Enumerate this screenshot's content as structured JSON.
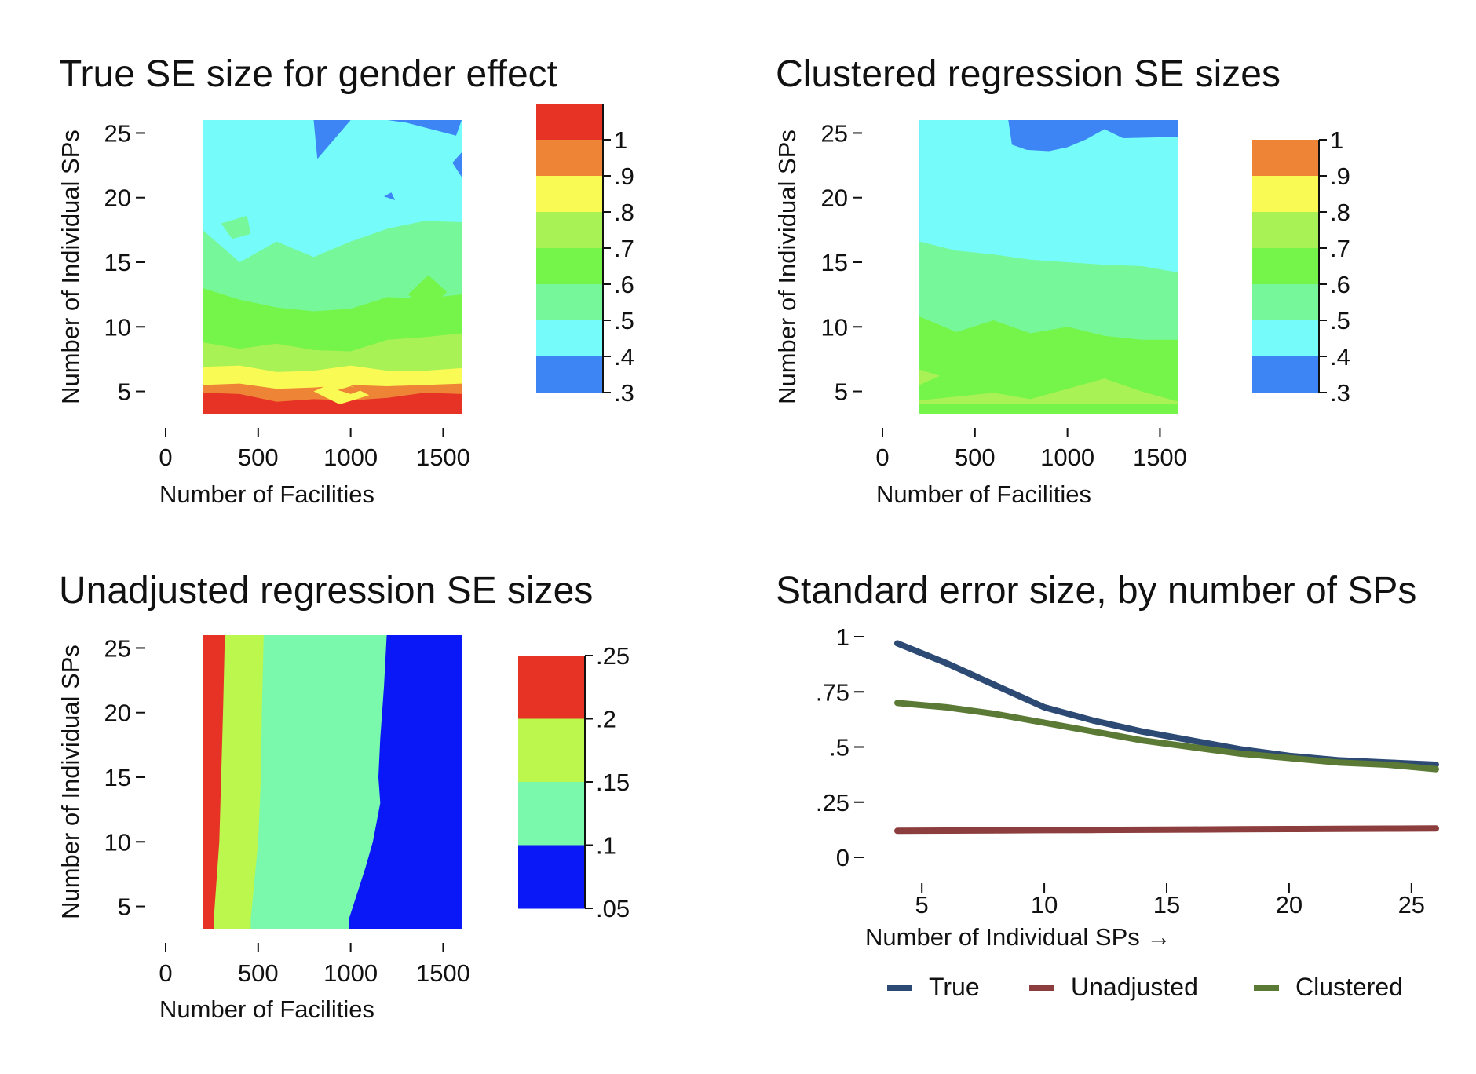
{
  "chart_data": [
    {
      "type": "heatmap",
      "title": "True SE size for gender effect",
      "xlabel": "Number of Facilities",
      "ylabel": "Number of Individual SPs",
      "x_ticks": [
        "0",
        "500",
        "1000",
        "1500"
      ],
      "y_ticks": [
        "5",
        "10",
        "15",
        "20",
        "25"
      ],
      "xlim": [
        0,
        1600
      ],
      "ylim": [
        4,
        26
      ],
      "data_extent": {
        "x": [
          200,
          1600
        ],
        "y": [
          4,
          26
        ]
      },
      "legend_ticks": [
        "1",
        ".9",
        ".8",
        ".7",
        ".6",
        ".5",
        ".4",
        ".3"
      ],
      "legend_colors": [
        "#e63325",
        "#ee8536",
        "#fafa55",
        "#a8f255",
        "#75f549",
        "#76f89a",
        "#76fbfb",
        "#3d84f5"
      ],
      "contour_bands": [
        {
          "level": "0.4-0.5",
          "color": "#76fbfb",
          "boundary": [
            [
              200,
              17.5
            ],
            [
              400,
              15
            ],
            [
              600,
              16.6
            ],
            [
              800,
              15.4
            ],
            [
              1000,
              16.6
            ],
            [
              1200,
              17.6
            ],
            [
              1400,
              18.2
            ],
            [
              1600,
              18.1
            ]
          ]
        },
        {
          "level": "0.5-0.6",
          "color": "#76f89a",
          "boundary": [
            [
              200,
              13
            ],
            [
              400,
              12.1
            ],
            [
              600,
              11.5
            ],
            [
              800,
              11.2
            ],
            [
              1000,
              11.4
            ],
            [
              1200,
              12.3
            ],
            [
              1400,
              12.2
            ],
            [
              1600,
              12.5
            ]
          ]
        },
        {
          "level": "0.6-0.7",
          "color": "#75f549",
          "boundary": [
            [
              200,
              8.8
            ],
            [
              400,
              8.3
            ],
            [
              600,
              8.7
            ],
            [
              800,
              8.2
            ],
            [
              1000,
              8.1
            ],
            [
              1200,
              9.0
            ],
            [
              1400,
              9.2
            ],
            [
              1600,
              9.5
            ]
          ]
        },
        {
          "level": "0.7-0.8",
          "color": "#a8f255",
          "boundary": [
            [
              200,
              6.9
            ],
            [
              400,
              7.0
            ],
            [
              600,
              6.5
            ],
            [
              800,
              6.6
            ],
            [
              1000,
              7.0
            ],
            [
              1200,
              6.6
            ],
            [
              1400,
              6.6
            ],
            [
              1600,
              6.8
            ]
          ]
        },
        {
          "level": "0.8-0.9",
          "color": "#fafa55",
          "boundary": [
            [
              200,
              5.5
            ],
            [
              400,
              5.6
            ],
            [
              600,
              5.2
            ],
            [
              800,
              5.3
            ],
            [
              1000,
              5.5
            ],
            [
              1200,
              5.4
            ],
            [
              1400,
              5.5
            ],
            [
              1600,
              5.6
            ]
          ]
        },
        {
          "level": "0.9-1",
          "color": "#ee8536",
          "boundary": [
            [
              200,
              4.9
            ],
            [
              400,
              4.8
            ],
            [
              600,
              4.2
            ],
            [
              800,
              4.4
            ],
            [
              1000,
              4.3
            ],
            [
              1200,
              4.5
            ],
            [
              1400,
              4.9
            ],
            [
              1600,
              4.8
            ]
          ]
        },
        {
          "level": ">1",
          "color": "#e63325",
          "boundary": [
            [
              200,
              4.6
            ],
            [
              280,
              4.4
            ],
            [
              360,
              4.1
            ],
            [
              420,
              4.0
            ]
          ]
        }
      ],
      "patches": [
        {
          "level": "0.3-0.4",
          "color": "#3d84f5",
          "points": [
            [
              800,
              26
            ],
            [
              1000,
              26
            ],
            [
              820,
              23
            ]
          ]
        },
        {
          "level": "0.3-0.4",
          "color": "#3d84f5",
          "points": [
            [
              1200,
              26
            ],
            [
              1600,
              26
            ],
            [
              1570,
              24.8
            ],
            [
              1300,
              25.8
            ]
          ]
        },
        {
          "level": "0.3-0.4",
          "color": "#3d84f5",
          "points": [
            [
              1600,
              23.5
            ],
            [
              1550,
              22.7
            ],
            [
              1600,
              21.6
            ]
          ]
        },
        {
          "level": "0.3-0.4",
          "color": "#3d84f5",
          "points": [
            [
              1180,
              20.1
            ],
            [
              1220,
              20.4
            ],
            [
              1240,
              19.8
            ]
          ]
        },
        {
          "level": "0.5-0.6",
          "color": "#76f89a",
          "points": [
            [
              300,
              18
            ],
            [
              440,
              18.6
            ],
            [
              460,
              17.2
            ],
            [
              360,
              16.8
            ]
          ]
        },
        {
          "level": "0.6-0.7",
          "color": "#75f549",
          "points": [
            [
              1310,
              12.5
            ],
            [
              1420,
              14
            ],
            [
              1520,
              12.7
            ],
            [
              1420,
              11.3
            ]
          ]
        },
        {
          "level": "0.8-0.9",
          "color": "#fafa55",
          "points": [
            [
              800,
              5.0
            ],
            [
              940,
              5.9
            ],
            [
              1100,
              4.7
            ],
            [
              940,
              4.0
            ]
          ]
        },
        {
          "level": "0.9-1",
          "color": "#ee8536",
          "points": [
            [
              930,
              5.1
            ],
            [
              1000,
              5.4
            ],
            [
              1060,
              5.1
            ],
            [
              1000,
              4.8
            ]
          ]
        }
      ]
    },
    {
      "type": "heatmap",
      "title": "Clustered regression SE sizes",
      "xlabel": "Number of Facilities",
      "ylabel": "Number of Individual SPs",
      "x_ticks": [
        "0",
        "500",
        "1000",
        "1500"
      ],
      "y_ticks": [
        "5",
        "10",
        "15",
        "20",
        "25"
      ],
      "xlim": [
        0,
        1600
      ],
      "ylim": [
        4,
        26
      ],
      "data_extent": {
        "x": [
          200,
          1600
        ],
        "y": [
          4,
          26
        ]
      },
      "legend_ticks": [
        "1",
        ".9",
        ".8",
        ".7",
        ".6",
        ".5",
        ".4",
        ".3"
      ],
      "legend_colors": [
        "#ee8536",
        "#fafa55",
        "#a8f255",
        "#75f549",
        "#76f89a",
        "#76fbfb",
        "#3d84f5"
      ],
      "contour_bands": [
        {
          "level": "0.3-0.4",
          "color": "#3d84f5",
          "boundary": [
            [
              200,
              26
            ],
            [
              700,
              26
            ]
          ]
        },
        {
          "level": "0.4-0.5",
          "color": "#76fbfb",
          "boundary": [
            [
              200,
              16.6
            ],
            [
              400,
              15.9
            ],
            [
              600,
              15.6
            ],
            [
              800,
              15.2
            ],
            [
              1000,
              15.0
            ],
            [
              1200,
              14.8
            ],
            [
              1400,
              14.7
            ],
            [
              1600,
              14.2
            ]
          ]
        },
        {
          "level": "0.5-0.6",
          "color": "#76f89a",
          "boundary": [
            [
              200,
              10.8
            ],
            [
              400,
              9.6
            ],
            [
              600,
              10.5
            ],
            [
              800,
              9.5
            ],
            [
              1000,
              10.0
            ],
            [
              1200,
              9.3
            ],
            [
              1400,
              9.0
            ],
            [
              1600,
              9.0
            ]
          ]
        },
        {
          "level": "0.6-0.7",
          "color": "#75f549",
          "boundary": [
            [
              200,
              4
            ],
            [
              1600,
              4
            ]
          ]
        }
      ],
      "patches": [
        {
          "level": "0.3-0.4",
          "color": "#3d84f5",
          "points": [
            [
              700,
              26
            ],
            [
              1600,
              26
            ],
            [
              1600,
              24.7
            ],
            [
              1300,
              24.6
            ],
            [
              1200,
              25.3
            ],
            [
              1100,
              24.5
            ],
            [
              1000,
              23.9
            ],
            [
              900,
              23.6
            ],
            [
              780,
              23.7
            ],
            [
              700,
              24.1
            ],
            [
              680,
              26
            ]
          ]
        },
        {
          "level": "0.7-0.8",
          "color": "#a8f255",
          "points": [
            [
              200,
              6.7
            ],
            [
              310,
              6.2
            ],
            [
              200,
              5.5
            ]
          ]
        },
        {
          "level": "0.7-0.8",
          "color": "#a8f255",
          "points": [
            [
              200,
              4
            ],
            [
              200,
              4.3
            ],
            [
              600,
              4.9
            ],
            [
              800,
              4.4
            ],
            [
              1000,
              5.2
            ],
            [
              1200,
              6.0
            ],
            [
              1400,
              5.0
            ],
            [
              1600,
              4.2
            ],
            [
              1600,
              4
            ]
          ]
        }
      ]
    },
    {
      "type": "heatmap",
      "title": "Unadjusted regression SE sizes",
      "xlabel": "Number of Facilities",
      "ylabel": "Number of Individual SPs",
      "x_ticks": [
        "0",
        "500",
        "1000",
        "1500"
      ],
      "y_ticks": [
        "5",
        "10",
        "15",
        "20",
        "25"
      ],
      "xlim": [
        0,
        1600
      ],
      "ylim": [
        4,
        26
      ],
      "data_extent": {
        "x": [
          200,
          1600
        ],
        "y": [
          4,
          26
        ]
      },
      "legend_ticks": [
        ".25",
        ".2",
        ".15",
        ".1",
        ".05"
      ],
      "legend_colors": [
        "#e63325",
        "#bcf74e",
        "#7af9ad",
        "#0a18f7"
      ],
      "vertical_boundaries": [
        {
          "color": "#bcf74e",
          "boundary": [
            [
              4,
              260
            ],
            [
              10,
              290
            ],
            [
              15,
              300
            ],
            [
              20,
              310
            ],
            [
              26,
              320
            ]
          ]
        },
        {
          "color": "#7af9ad",
          "boundary": [
            [
              4,
              460
            ],
            [
              10,
              500
            ],
            [
              15,
              515
            ],
            [
              20,
              520
            ],
            [
              26,
              530
            ]
          ]
        },
        {
          "color": "#0a18f7",
          "boundary": [
            [
              4,
              990
            ],
            [
              8,
              1080
            ],
            [
              10,
              1120
            ],
            [
              13,
              1160
            ],
            [
              15,
              1150
            ],
            [
              18,
              1160
            ],
            [
              22,
              1180
            ],
            [
              26,
              1195
            ]
          ]
        }
      ]
    },
    {
      "type": "line",
      "title": "Standard error size, by number of SPs",
      "xlabel": "Number of Individual SPs →",
      "x_ticks": [
        "5",
        "10",
        "15",
        "20",
        "25"
      ],
      "y_ticks": [
        "0",
        ".25",
        ".5",
        ".75",
        "1"
      ],
      "xlim": [
        4,
        26
      ],
      "ylim": [
        0,
        1
      ],
      "legend_placement": "bottom",
      "x": [
        4,
        6,
        8,
        10,
        12,
        14,
        16,
        18,
        20,
        22,
        24,
        26
      ],
      "series": [
        {
          "name": "True",
          "color": "#2c4a73",
          "values": [
            0.97,
            0.88,
            0.78,
            0.68,
            0.62,
            0.57,
            0.53,
            0.49,
            0.46,
            0.44,
            0.43,
            0.42
          ]
        },
        {
          "name": "Unadjusted",
          "color": "#8c3d3d",
          "values": [
            0.12,
            0.121,
            0.122,
            0.123,
            0.124,
            0.125,
            0.126,
            0.127,
            0.128,
            0.129,
            0.13,
            0.131
          ]
        },
        {
          "name": "Clustered",
          "color": "#5a7a35",
          "values": [
            0.7,
            0.68,
            0.65,
            0.61,
            0.57,
            0.53,
            0.5,
            0.47,
            0.45,
            0.43,
            0.42,
            0.4
          ]
        }
      ]
    }
  ]
}
